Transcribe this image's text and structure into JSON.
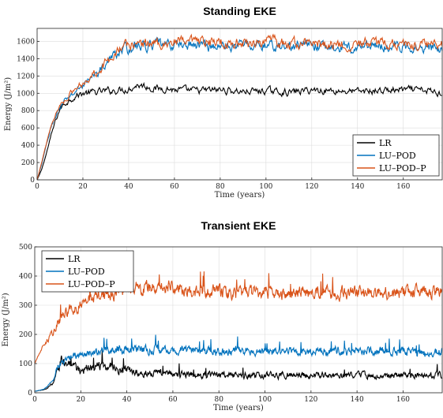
{
  "chart_data": [
    {
      "type": "line",
      "title": "Standing EKE",
      "xlabel": "Time (years)",
      "ylabel": "Energy (J/m²)",
      "xlim": [
        0,
        177
      ],
      "ylim": [
        0,
        1750
      ],
      "xticks": [
        0,
        20,
        40,
        60,
        80,
        100,
        120,
        140,
        160
      ],
      "yticks": [
        0,
        200,
        400,
        600,
        800,
        1000,
        1200,
        1400,
        1600
      ],
      "grid": true,
      "legend": "bottom-right",
      "series": [
        {
          "name": "LR",
          "color": "#000000",
          "x": [
            0,
            2,
            4,
            6,
            8,
            10,
            12,
            14,
            16,
            18,
            20,
            24,
            28,
            32,
            36,
            40,
            44,
            48,
            52,
            56,
            60,
            70,
            80,
            90,
            100,
            110,
            120,
            130,
            140,
            150,
            160,
            170,
            177
          ],
          "y": [
            0,
            120,
            300,
            500,
            680,
            820,
            880,
            920,
            960,
            980,
            1000,
            1010,
            1020,
            1030,
            1040,
            1050,
            1100,
            1080,
            1050,
            1060,
            1040,
            1030,
            1040,
            1020,
            1030,
            1010,
            1040,
            1030,
            1020,
            1030,
            1040,
            1030,
            1000
          ]
        },
        {
          "name": "LU–POD",
          "color": "#0072BD",
          "x": [
            0,
            2,
            4,
            6,
            8,
            10,
            12,
            14,
            16,
            18,
            20,
            24,
            28,
            32,
            36,
            40,
            44,
            48,
            52,
            56,
            60,
            70,
            80,
            90,
            100,
            110,
            120,
            130,
            140,
            150,
            160,
            170,
            177
          ],
          "y": [
            0,
            180,
            400,
            600,
            740,
            830,
            900,
            960,
            1000,
            1050,
            1100,
            1180,
            1280,
            1400,
            1490,
            1520,
            1550,
            1540,
            1570,
            1550,
            1560,
            1560,
            1540,
            1560,
            1550,
            1540,
            1560,
            1520,
            1540,
            1550,
            1530,
            1540,
            1500
          ]
        },
        {
          "name": "LU–POD–P",
          "color": "#D95319",
          "x": [
            0,
            2,
            4,
            6,
            8,
            10,
            12,
            14,
            16,
            18,
            20,
            24,
            28,
            32,
            36,
            40,
            44,
            48,
            52,
            56,
            60,
            70,
            80,
            90,
            100,
            110,
            120,
            130,
            140,
            150,
            160,
            170,
            177
          ],
          "y": [
            0,
            200,
            420,
            620,
            760,
            860,
            930,
            980,
            1030,
            1080,
            1120,
            1210,
            1300,
            1420,
            1520,
            1560,
            1580,
            1570,
            1590,
            1580,
            1590,
            1580,
            1590,
            1580,
            1600,
            1570,
            1580,
            1560,
            1570,
            1580,
            1560,
            1580,
            1550
          ]
        }
      ]
    },
    {
      "type": "line",
      "title": "Transient EKE",
      "xlabel": "Time (years)",
      "ylabel": "Energy (J/m²)",
      "xlim": [
        0,
        177
      ],
      "ylim": [
        0,
        500
      ],
      "xticks": [
        0,
        20,
        40,
        60,
        80,
        100,
        120,
        140,
        160
      ],
      "yticks": [
        0,
        100,
        200,
        300,
        400,
        500
      ],
      "grid": true,
      "legend": "top-left",
      "series": [
        {
          "name": "LR",
          "color": "#000000",
          "x": [
            0,
            4,
            8,
            10,
            12,
            14,
            16,
            20,
            25,
            30,
            40,
            50,
            60,
            70,
            80,
            90,
            100,
            110,
            120,
            130,
            140,
            150,
            160,
            170,
            177
          ],
          "y": [
            5,
            10,
            30,
            80,
            120,
            100,
            85,
            80,
            85,
            95,
            75,
            70,
            65,
            60,
            62,
            60,
            58,
            62,
            60,
            58,
            60,
            58,
            60,
            58,
            62
          ]
        },
        {
          "name": "LU–POD",
          "color": "#0072BD",
          "x": [
            0,
            4,
            8,
            10,
            12,
            14,
            16,
            20,
            25,
            30,
            40,
            50,
            60,
            70,
            80,
            90,
            100,
            110,
            120,
            130,
            140,
            150,
            160,
            170,
            177
          ],
          "y": [
            5,
            12,
            40,
            90,
            110,
            115,
            120,
            130,
            140,
            145,
            150,
            150,
            145,
            145,
            140,
            145,
            140,
            145,
            140,
            145,
            140,
            145,
            145,
            140,
            140
          ]
        },
        {
          "name": "LU–POD–P",
          "color": "#D95319",
          "x": [
            0,
            4,
            8,
            10,
            12,
            14,
            16,
            20,
            25,
            30,
            40,
            50,
            60,
            70,
            80,
            90,
            100,
            110,
            120,
            130,
            140,
            150,
            160,
            170,
            177
          ],
          "y": [
            100,
            170,
            210,
            240,
            260,
            275,
            285,
            300,
            320,
            335,
            350,
            365,
            360,
            350,
            345,
            340,
            345,
            340,
            345,
            340,
            345,
            340,
            345,
            345,
            345
          ]
        }
      ]
    }
  ]
}
